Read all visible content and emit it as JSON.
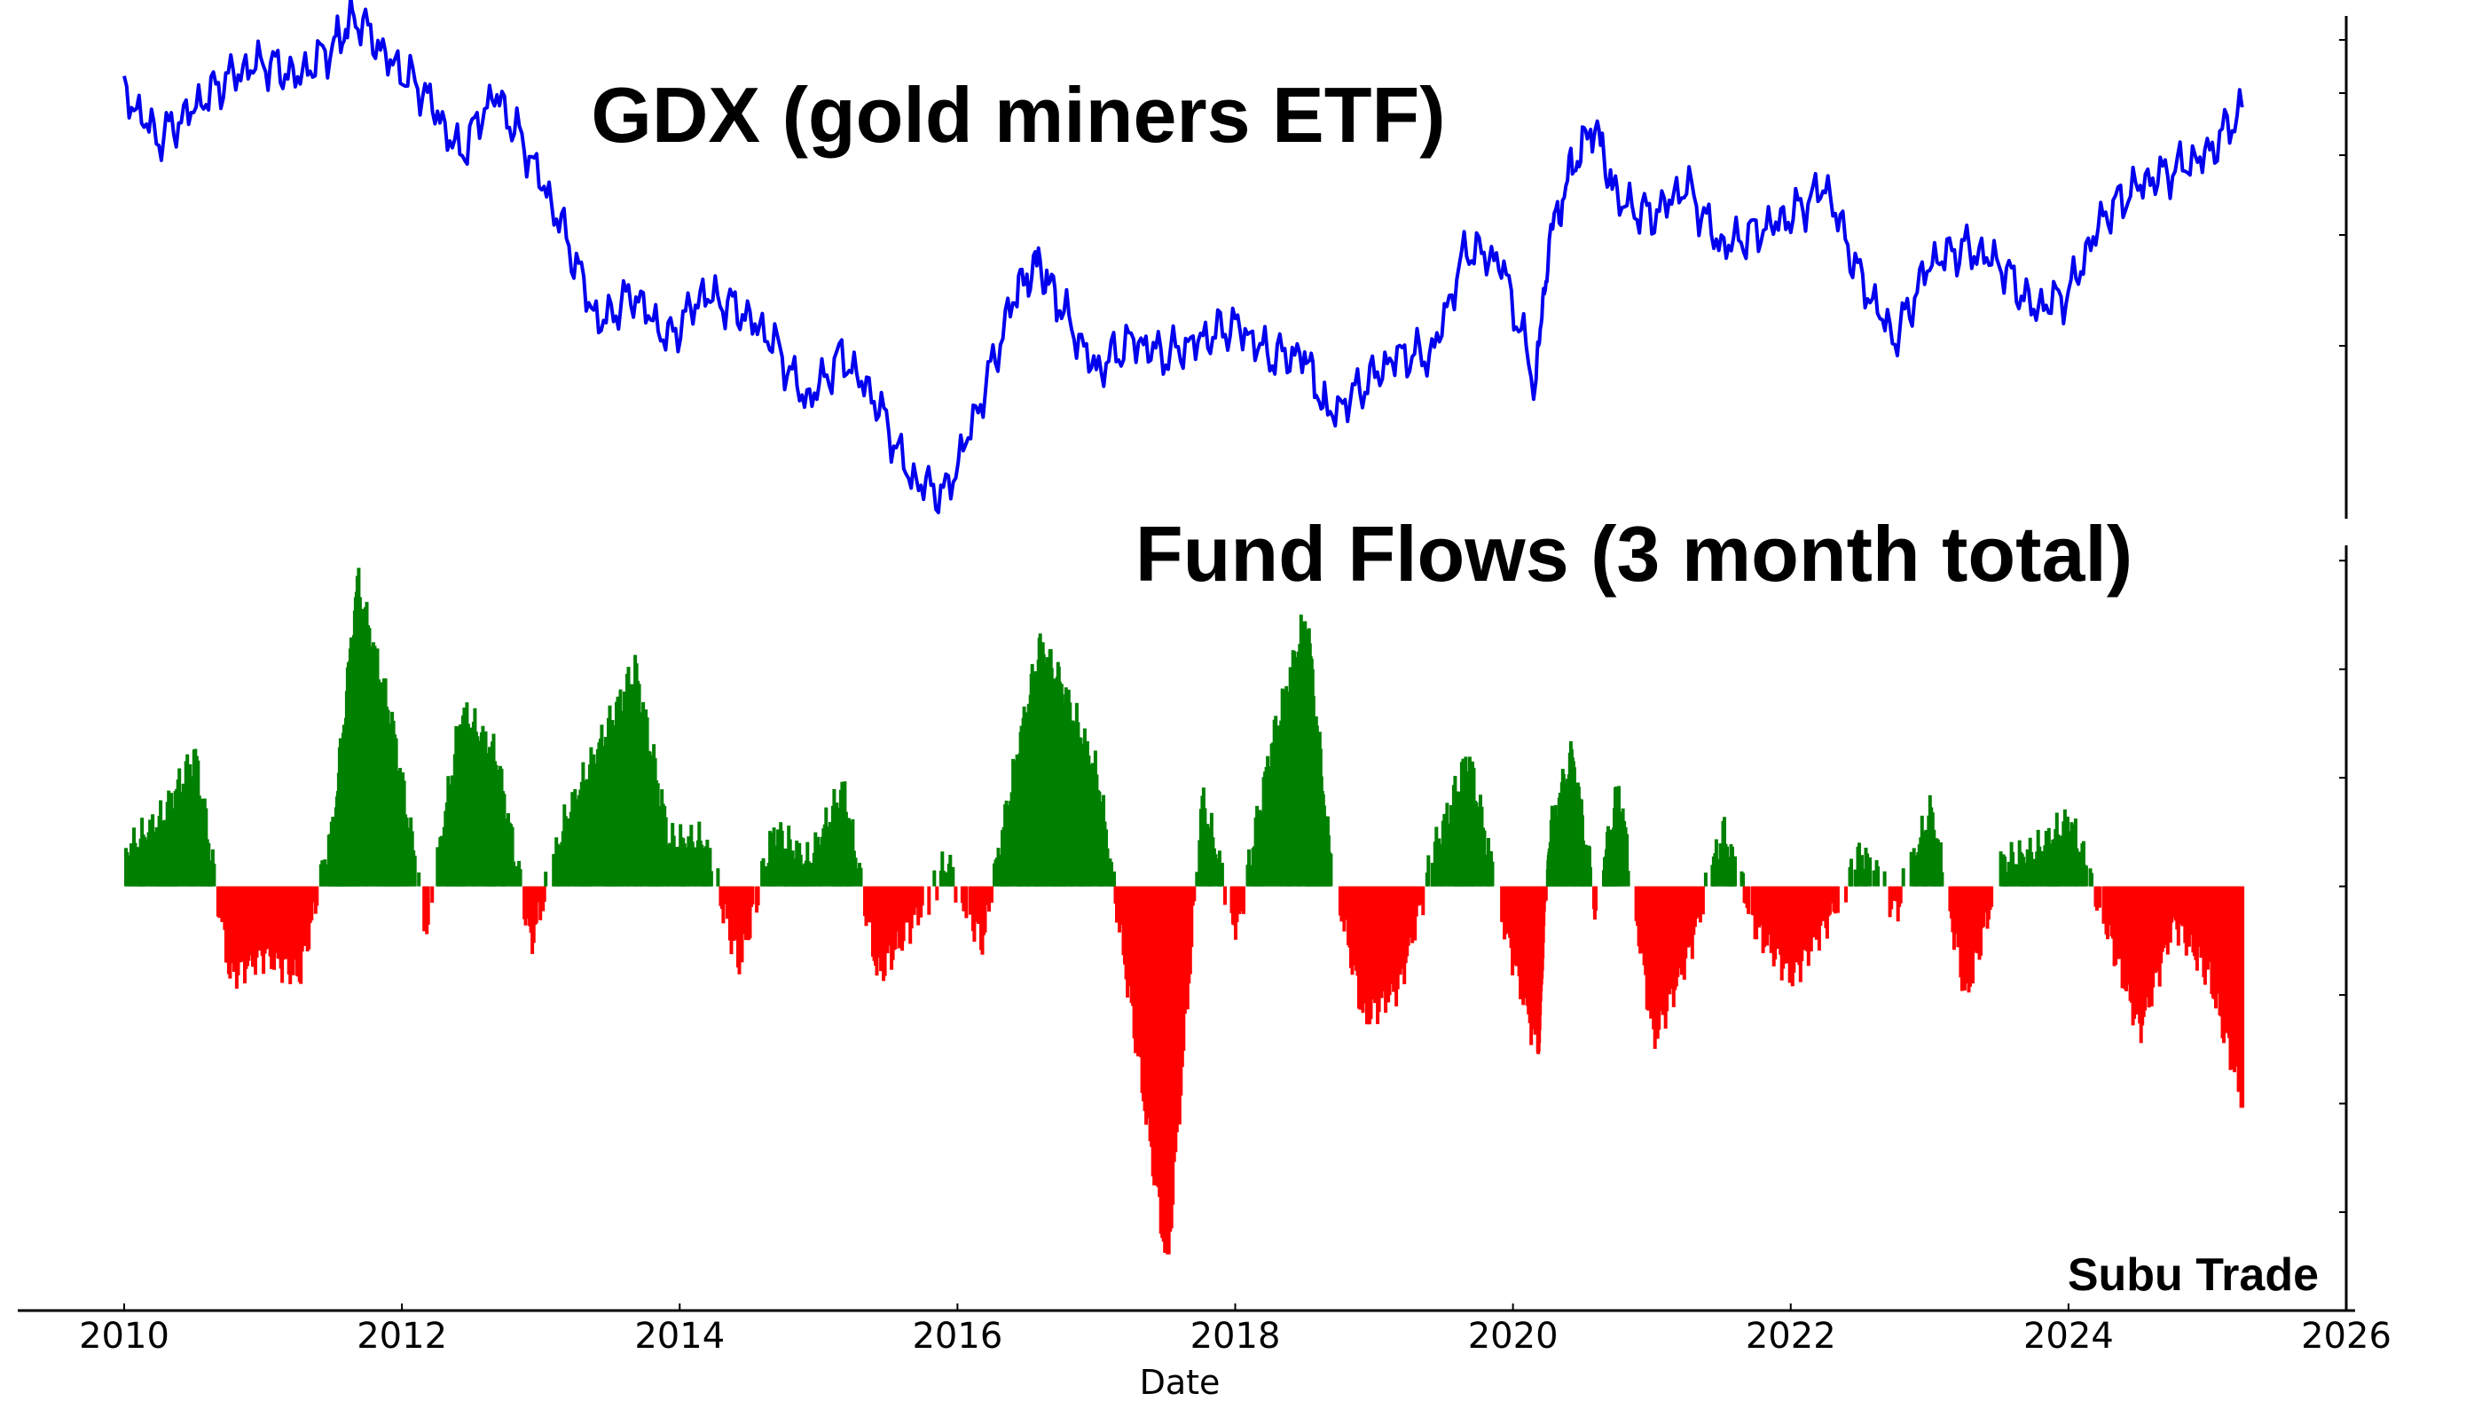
{
  "chart_data": [
    {
      "type": "line",
      "title": "GDX (gold miners ETF)",
      "color": "#0000ee",
      "xlim": [
        "2010-01-01",
        "2026-01-01"
      ],
      "ylim": [
        17,
        48
      ],
      "x": [
        "2010-01",
        "2010-04",
        "2010-07",
        "2010-10",
        "2011-01",
        "2011-04",
        "2011-07",
        "2011-09",
        "2011-12",
        "2012-03",
        "2012-06",
        "2012-09",
        "2012-12",
        "2013-03",
        "2013-06",
        "2013-09",
        "2013-12",
        "2014-03",
        "2014-06",
        "2014-09",
        "2014-12",
        "2015-03",
        "2015-06",
        "2015-09",
        "2015-12",
        "2016-03",
        "2016-06",
        "2016-08",
        "2016-10",
        "2017-01",
        "2017-04",
        "2017-07",
        "2017-10",
        "2018-01",
        "2018-04",
        "2018-07",
        "2018-09",
        "2018-12",
        "2019-03",
        "2019-06",
        "2019-09",
        "2019-12",
        "2020-03",
        "2020-04",
        "2020-06",
        "2020-08",
        "2020-10",
        "2021-01",
        "2021-04",
        "2021-07",
        "2021-10",
        "2022-01",
        "2022-04",
        "2022-07",
        "2022-10",
        "2023-01",
        "2023-04",
        "2023-07",
        "2023-10",
        "2024-01",
        "2024-04",
        "2024-07",
        "2024-10",
        "2025-01",
        "2025-04"
      ],
      "y": [
        44,
        41,
        43,
        45,
        46,
        45,
        47,
        49,
        46,
        44,
        40,
        44,
        40,
        35,
        29,
        31,
        28,
        31,
        30,
        28,
        24,
        27,
        24,
        19,
        18,
        24,
        31,
        33,
        30,
        26,
        28,
        27,
        28,
        29,
        27,
        27,
        23,
        25,
        27,
        27,
        34,
        33,
        25,
        34,
        39,
        42,
        37,
        36,
        38,
        34,
        35,
        36,
        38,
        32,
        28,
        33,
        34,
        33,
        30,
        31,
        36,
        38,
        39,
        40,
        43
      ]
    },
    {
      "type": "bar",
      "title": "Fund Flows (3 month total)",
      "colors": {
        "positive": "#008000",
        "negative": "#ff0000"
      },
      "xlim": [
        "2010-01-01",
        "2026-01-01"
      ],
      "ylim": [
        -3.8,
        3.1
      ],
      "x": [
        "2010-01",
        "2010-04",
        "2010-07",
        "2010-10",
        "2011-01",
        "2011-04",
        "2011-07",
        "2011-09",
        "2011-12",
        "2012-03",
        "2012-06",
        "2012-09",
        "2012-12",
        "2013-03",
        "2013-06",
        "2013-09",
        "2013-12",
        "2014-03",
        "2014-06",
        "2014-09",
        "2014-12",
        "2015-03",
        "2015-06",
        "2015-09",
        "2015-12",
        "2016-03",
        "2016-06",
        "2016-08",
        "2016-10",
        "2017-01",
        "2017-04",
        "2017-07",
        "2017-10",
        "2018-01",
        "2018-04",
        "2018-07",
        "2018-09",
        "2018-12",
        "2019-03",
        "2019-06",
        "2019-09",
        "2019-12",
        "2020-03",
        "2020-04",
        "2020-06",
        "2020-08",
        "2020-10",
        "2021-01",
        "2021-04",
        "2021-07",
        "2021-10",
        "2022-01",
        "2022-04",
        "2022-07",
        "2022-10",
        "2023-01",
        "2023-04",
        "2023-07",
        "2023-10",
        "2024-01",
        "2024-04",
        "2024-07",
        "2024-10",
        "2025-01",
        "2025-04"
      ],
      "y": [
        0.3,
        0.6,
        1.2,
        -0.8,
        -0.6,
        -0.8,
        0.6,
        2.8,
        1.5,
        -0.4,
        1.6,
        1.2,
        -0.5,
        0.6,
        1.3,
        2.0,
        0.4,
        0.4,
        -0.7,
        0.5,
        0.2,
        0.9,
        -0.8,
        -0.3,
        0.2,
        -0.5,
        1.2,
        2.2,
        1.8,
        1.0,
        -1.2,
        -3.5,
        0.8,
        -0.4,
        1.3,
        2.5,
        0.3,
        -1.2,
        -0.9,
        0.3,
        1.2,
        -0.3,
        -1.5,
        0.5,
        1.2,
        -0.2,
        0.9,
        -1.4,
        -0.6,
        0.5,
        -0.4,
        -0.8,
        -0.3,
        0.3,
        -0.2,
        0.7,
        -1.0,
        0.2,
        0.3,
        0.6,
        -0.3,
        -1.3,
        -0.3,
        -0.8,
        -2.0
      ]
    }
  ],
  "x_axis": {
    "label": "Date",
    "ticks": [
      "2010",
      "2012",
      "2014",
      "2016",
      "2018",
      "2020",
      "2022",
      "2024",
      "2026"
    ]
  },
  "watermark": "Subu Trade"
}
